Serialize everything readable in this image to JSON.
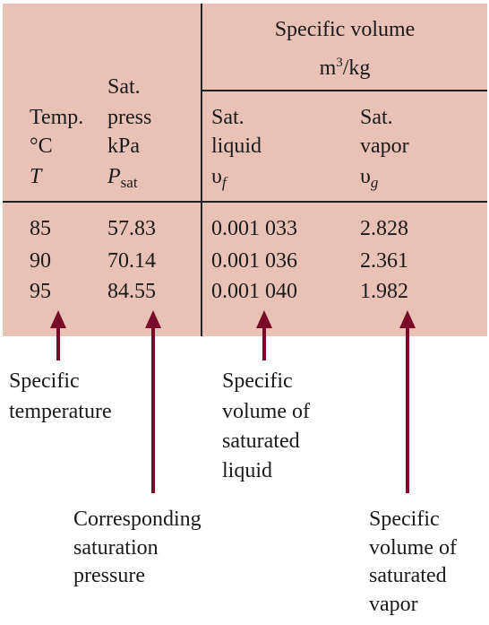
{
  "header": {
    "specific_volume_title": "Specific volume",
    "specific_volume_units_base": "m",
    "specific_volume_units_exp": "3",
    "specific_volume_units_rest": "/kg",
    "col_temp": {
      "line1": "Temp.",
      "line2": "°C",
      "symbol": "T"
    },
    "col_press": {
      "line0": "Sat.",
      "line1": "press",
      "line2": "kPa",
      "symbol": "P",
      "symbol_sub": "sat"
    },
    "col_liquid": {
      "line1": "Sat.",
      "line2": "liquid",
      "symbol": "υ",
      "symbol_sub": "f"
    },
    "col_vapor": {
      "line1": "Sat.",
      "line2": "vapor",
      "symbol": "υ",
      "symbol_sub": "g"
    }
  },
  "rows": [
    {
      "temp": "85",
      "press": "57.83",
      "liquid": "0.001 033",
      "vapor": "2.828"
    },
    {
      "temp": "90",
      "press": "70.14",
      "liquid": "0.001 036",
      "vapor": "2.361"
    },
    {
      "temp": "95",
      "press": "84.55",
      "liquid": "0.001 040",
      "vapor": "1.982"
    }
  ],
  "annotations": {
    "temp": [
      "Specific",
      "temperature"
    ],
    "press": [
      "Corresponding",
      "saturation",
      "pressure"
    ],
    "liquid": [
      "Specific",
      "volume of",
      "saturated",
      "liquid"
    ],
    "vapor": [
      "Specific",
      "volume of",
      "saturated",
      "vapor"
    ]
  },
  "colors": {
    "table_background": "#e8c2b4",
    "arrow": "#7a0a2a",
    "rule_lines": "#222222"
  }
}
